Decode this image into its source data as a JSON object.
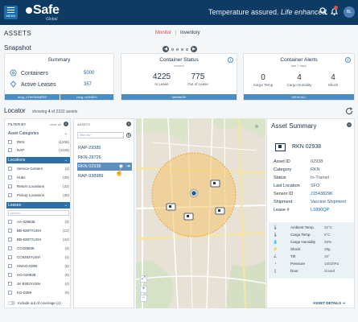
{
  "header": {
    "menu_label": "MENU",
    "logo_text": "Safe",
    "logo_sub": "Global",
    "tagline_pre": "Temperature assured. ",
    "tagline_post": "Life enhanced.",
    "user_initials": "BL",
    "bg": "#0d3b63"
  },
  "page": {
    "title": "ASSETS"
  },
  "nav": {
    "monitor": "Monitor",
    "separator": "|",
    "inventory": "Inventory"
  },
  "snapshot": {
    "title": "Snapshot",
    "summary": {
      "title": "Summary",
      "rows": [
        {
          "label": "Containers",
          "value": "5000"
        },
        {
          "label": "Active Leases",
          "value": "357"
        }
      ],
      "footer_left": "mng. CONTAINERS",
      "footer_right": "mng. LEASES"
    },
    "container_status": {
      "title": "Container Status",
      "subtitle": "current",
      "stats": [
        {
          "value": "4225",
          "label": "In Lease"
        },
        {
          "value": "775",
          "label": "Out of Lease"
        }
      ],
      "footer": "MANAGE"
    },
    "container_alerts": {
      "title": "Container Alerts",
      "subtitle": "last 7 days",
      "stats": [
        {
          "value": "0",
          "label": "Cargo Temp"
        },
        {
          "value": "4",
          "label": "Cargo Humidity"
        },
        {
          "value": "4",
          "label": "Shock"
        }
      ],
      "footer": "VIEW ALL"
    }
  },
  "locator": {
    "title": "Locator",
    "count_pre": "showing ",
    "count_bold": "4",
    "count_post": " of 2332 assets"
  },
  "filter": {
    "title": "FILTER BY",
    "clear": "clear all",
    "sections": {
      "categories": "Asset Categories",
      "locations": "Locations",
      "leases": "Leases"
    },
    "categories": [
      {
        "name": "RKN",
        "count": "(1206)"
      },
      {
        "name": "RAP",
        "count": "(1126)"
      }
    ],
    "locations": [
      {
        "name": "Service Centers",
        "count": "(1)"
      },
      {
        "name": "Hubs",
        "count": "(29)"
      },
      {
        "name": "Return Locations",
        "count": "(33)"
      },
      {
        "name": "Pickup Locations",
        "count": "(30)"
      }
    ],
    "search_placeholder": "search",
    "leases": [
      {
        "name": "AA-029838",
        "count": "(3)"
      },
      {
        "name": "BB-9287YUSH",
        "count": "(12)"
      },
      {
        "name": "BB-9287YUSH",
        "count": "(24)"
      },
      {
        "name": "CC029838",
        "count": "(3)"
      },
      {
        "name": "CC9283YUSH",
        "count": "(4)"
      },
      {
        "name": "HMAO-0299",
        "count": "(8)"
      },
      {
        "name": "HO-029838",
        "count": "(6)"
      },
      {
        "name": "JK-9283YUSH",
        "count": "(4)"
      },
      {
        "name": "KO-0299",
        "count": "(9)"
      }
    ],
    "include_out_of_coverage": "Include out of coverage",
    "include_count": "(o)"
  },
  "asset_list": {
    "title": "ASSETS",
    "filter_placeholder": "filter list",
    "items": [
      {
        "id": "RAP-29385",
        "selected": false
      },
      {
        "id": "RKN-28726",
        "selected": false
      },
      {
        "id": "RKN 02938",
        "selected": true
      },
      {
        "id": "RAP-938989",
        "selected": false
      }
    ]
  },
  "map": {
    "zoom_in": "+",
    "zoom_out": "−",
    "fullscreen": "⤢",
    "marker_count": 4
  },
  "asset_summary": {
    "title": "Asset Summary",
    "asset_id": "RKN 02938",
    "details": [
      {
        "label": "Asset ID",
        "value": "02938",
        "blue": false
      },
      {
        "label": "Category",
        "value": "RKN",
        "blue": false
      },
      {
        "label": "Status",
        "value": "In-Transit",
        "blue": false
      },
      {
        "label": "Last Location",
        "value": "SFO",
        "blue": false
      },
      {
        "label": "Sensor ID",
        "value": "J1543829K",
        "blue": true
      },
      {
        "label": "Shipment",
        "value": "Vaccine Shipment",
        "blue": true
      },
      {
        "label": "Lease #",
        "value": "L1890QP",
        "blue": true
      }
    ],
    "sensors": [
      {
        "icon": "thermometer-icon",
        "glyph": "🌡",
        "label": "Ambient Temp.",
        "value": "32°C"
      },
      {
        "icon": "thermometer-icon",
        "glyph": "🌡",
        "label": "Cargo Temp.",
        "value": "5°C"
      },
      {
        "icon": "droplet-icon",
        "glyph": "💧",
        "label": "Cargo Humidity",
        "value": "26%"
      },
      {
        "icon": "shock-icon",
        "glyph": "⚡",
        "label": "Shock",
        "value": "18g"
      },
      {
        "icon": "tilt-icon",
        "glyph": "∠",
        "label": "Tilt",
        "value": "10°"
      },
      {
        "icon": "gauge-icon",
        "glyph": "◔",
        "label": "Pressure",
        "value": "1001hPa"
      },
      {
        "icon": "door-icon",
        "glyph": "▯",
        "label": "Door",
        "value": "closed"
      }
    ],
    "details_link": "ASSET DETAILS"
  }
}
